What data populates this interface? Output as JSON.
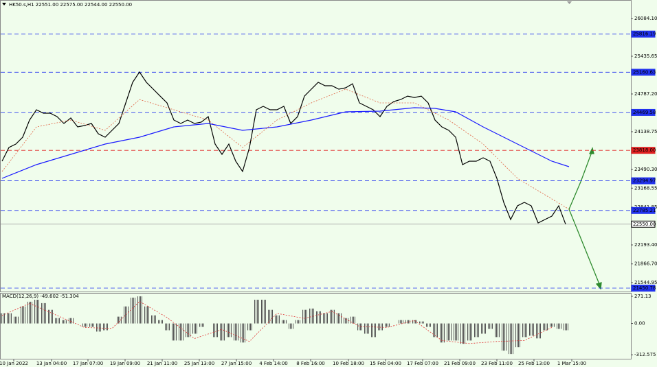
{
  "chart_data": [
    {
      "type": "line",
      "title": "HK50.s,H1  22551.00 22575.00 22544.00 22550.00",
      "xlim": [
        -0.3,
        91.5
      ],
      "xticks": [
        {
          "value": 1.7,
          "label": "10 Jan 2022"
        },
        {
          "value": 7.2,
          "label": "13 Jan 04:00"
        },
        {
          "value": 12.5,
          "label": "17 Jan 07:00"
        },
        {
          "value": 17.9,
          "label": "19 Jan 09:00"
        },
        {
          "value": 23.3,
          "label": "21 Jan 11:00"
        },
        {
          "value": 28.7,
          "label": "25 Jan 13:00"
        },
        {
          "value": 34.1,
          "label": "27 Jan 15:00"
        },
        {
          "value": 39.5,
          "label": "4 Feb 14:00"
        },
        {
          "value": 44.9,
          "label": "8 Feb 16:00"
        },
        {
          "value": 50.4,
          "label": "10 Feb 18:00"
        },
        {
          "value": 55.8,
          "label": "15 Feb 04:00"
        },
        {
          "value": 61.2,
          "label": "17 Feb 07:00"
        },
        {
          "value": 66.6,
          "label": "21 Feb 09:00"
        },
        {
          "value": 72,
          "label": "23 Feb 11:00"
        },
        {
          "value": 77.4,
          "label": "25 Feb 13:00"
        },
        {
          "value": 82.9,
          "label": "1 Mar 15:00"
        }
      ],
      "ylim": [
        21392,
        26402
      ],
      "yticks": [
        {
          "value": 26084.1,
          "label": "26084.10"
        },
        25435.65,
        {
          "value": 24787.2,
          "label": "24787.20"
        },
        24138.75,
        {
          "value": 23490.3,
          "label": "23490.30"
        },
        23168.55,
        22841.85,
        {
          "value": 22193.4,
          "label": "22193.40"
        },
        {
          "value": 21866.7,
          "label": "21866.70"
        },
        21544.95
      ],
      "levels": [
        {
          "value": 25816.19,
          "color": "#2233ee"
        },
        {
          "value": 25160.63,
          "color": "#2233ee"
        },
        {
          "value": 24469.58,
          "color": "#2233ee"
        },
        {
          "value": 23818,
          "label": "23818.00",
          "color": "#e02020"
        },
        {
          "value": 23294.97,
          "color": "#2233ee"
        },
        {
          "value": 22785.21,
          "color": "#2233ee"
        },
        {
          "value": 22550,
          "label": "22550.00",
          "color": "#999999"
        },
        {
          "value": 21450.78,
          "color": "#2233ee"
        }
      ],
      "series": [
        {
          "color": "#000000",
          "values": [
            23632,
            23868,
            23927,
            24044,
            24339,
            24516,
            24457,
            24457,
            24398,
            24280,
            24374,
            24221,
            24245,
            24280,
            24103,
            24044,
            24162,
            24280,
            24634,
            24987,
            25164,
            24987,
            24869,
            24751,
            24634,
            24339,
            24280,
            24339,
            24280,
            24304,
            24398,
            23927,
            23750,
            23927,
            23632,
            23455,
            23868,
            24516,
            24575,
            24516,
            24516,
            24575,
            24280,
            24398,
            24751,
            24869,
            24987,
            24928,
            24928,
            24869,
            24893,
            24963,
            24634,
            24575,
            24516,
            24398,
            24575,
            24657,
            24692,
            24751,
            24727,
            24751,
            24634,
            24339,
            24221,
            24162,
            24044,
            23573,
            23632,
            23632,
            23691,
            23632,
            23337,
            22924,
            22630,
            22865,
            22924,
            22865,
            22571,
            22630,
            22689,
            22865,
            22550
          ]
        },
        {
          "color": "#1a1aff",
          "x": [
            0,
            5,
            10,
            15,
            20,
            25,
            30,
            35,
            40,
            45,
            50,
            55,
            60,
            63,
            66,
            70,
            75,
            80,
            82.5
          ],
          "values": [
            23337,
            23573,
            23750,
            23927,
            24044,
            24221,
            24280,
            24162,
            24221,
            24339,
            24480,
            24492,
            24551,
            24539,
            24480,
            24221,
            23927,
            23632,
            23538
          ]
        },
        {
          "color": "#e06040",
          "dashed": true,
          "x": [
            0,
            5,
            10,
            15,
            20,
            25,
            30,
            35,
            40,
            45,
            50,
            55,
            60,
            65,
            70,
            75,
            80,
            82.5
          ],
          "values": [
            23455,
            24221,
            24339,
            24162,
            24692,
            24516,
            24339,
            23868,
            24339,
            24634,
            24869,
            24634,
            24634,
            24339,
            23927,
            23337,
            22983,
            22806
          ]
        }
      ]
    },
    {
      "type": "bar",
      "title": "MACD(12,26,9) -49.602 -51.304",
      "xlim": [
        -0.3,
        91.5
      ],
      "ylim": [
        -359,
        298
      ],
      "yticks": [
        271.13,
        {
          "value": 0,
          "label": "0.00"
        },
        -312.575
      ],
      "color": "#555555",
      "values": [
        102,
        102,
        68,
        170,
        217,
        237,
        203,
        136,
        54,
        34,
        54,
        0,
        -34,
        -34,
        -81,
        -68,
        0,
        68,
        170,
        258,
        271,
        170,
        81,
        34,
        -68,
        -170,
        -170,
        -136,
        -102,
        -34,
        0,
        -136,
        -170,
        -136,
        -170,
        -190,
        -68,
        237,
        237,
        136,
        81,
        34,
        -54,
        34,
        136,
        149,
        122,
        102,
        136,
        102,
        54,
        68,
        -68,
        -102,
        -136,
        -68,
        -34,
        0,
        34,
        34,
        34,
        20,
        -34,
        -136,
        -190,
        -170,
        -170,
        -203,
        -170,
        -136,
        -102,
        -54,
        -136,
        -271,
        -305,
        -237,
        -136,
        -122,
        -149,
        -68,
        -34,
        -54,
        -68
      ],
      "signal": {
        "color": "#e03030",
        "x": [
          0,
          4,
          8,
          12,
          16,
          20,
          24,
          28,
          32,
          36,
          40,
          44,
          48,
          52,
          56,
          60,
          64,
          68,
          72,
          76,
          80
        ],
        "values": [
          80,
          200,
          80,
          -40,
          -50,
          220,
          60,
          -150,
          -60,
          -180,
          100,
          50,
          120,
          -30,
          -40,
          30,
          -170,
          -200,
          -180,
          -170,
          -40
        ]
      }
    }
  ]
}
